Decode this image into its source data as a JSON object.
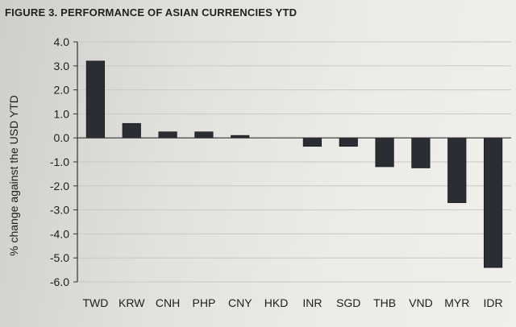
{
  "chart_data": {
    "type": "bar",
    "title": "FIGURE 3. PERFORMANCE OF ASIAN CURRENCIES YTD",
    "ylabel": "% change against the USD YTD",
    "xlabel": "",
    "categories": [
      "TWD",
      "KRW",
      "CNH",
      "PHP",
      "CNY",
      "HKD",
      "INR",
      "SGD",
      "THB",
      "VND",
      "MYR",
      "IDR"
    ],
    "values": [
      3.2,
      0.6,
      0.25,
      0.25,
      0.1,
      0.0,
      -0.35,
      -0.35,
      -1.2,
      -1.25,
      -2.7,
      -5.4
    ],
    "ylim": [
      -6.0,
      4.0
    ],
    "yticks": [
      "4.0",
      "3.0",
      "2.0",
      "1.0",
      "0.0",
      "-1.0",
      "-2.0",
      "-3.0",
      "-4.0",
      "-5.0",
      "-6.0"
    ],
    "ytick_values": [
      4,
      3,
      2,
      1,
      0,
      -1,
      -2,
      -3,
      -4,
      -5,
      -6
    ],
    "grid": true,
    "bar_color": "#2a2d33",
    "grid_color": "#c9c8c4",
    "axis_color": "#333333"
  }
}
